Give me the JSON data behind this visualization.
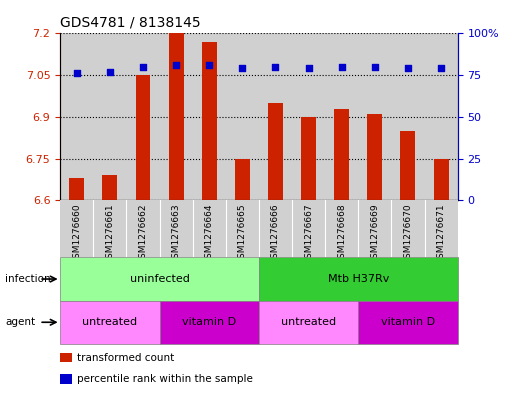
{
  "title": "GDS4781 / 8138145",
  "samples": [
    "GSM1276660",
    "GSM1276661",
    "GSM1276662",
    "GSM1276663",
    "GSM1276664",
    "GSM1276665",
    "GSM1276666",
    "GSM1276667",
    "GSM1276668",
    "GSM1276669",
    "GSM1276670",
    "GSM1276671"
  ],
  "bar_values": [
    6.68,
    6.69,
    7.05,
    7.2,
    7.17,
    6.75,
    6.95,
    6.9,
    6.93,
    6.91,
    6.85,
    6.75
  ],
  "dot_values": [
    76,
    77,
    80,
    81,
    81,
    79,
    80,
    79,
    80,
    80,
    79,
    79
  ],
  "bar_bottom": 6.6,
  "ylim_left": [
    6.6,
    7.2
  ],
  "ylim_right": [
    0,
    100
  ],
  "yticks_left": [
    6.6,
    6.75,
    6.9,
    7.05,
    7.2
  ],
  "yticks_right": [
    0,
    25,
    50,
    75,
    100
  ],
  "ytick_labels_left": [
    "6.6",
    "6.75",
    "6.9",
    "7.05",
    "7.2"
  ],
  "ytick_labels_right": [
    "0",
    "25",
    "50",
    "75",
    "100%"
  ],
  "bar_color": "#cc2200",
  "dot_color": "#0000cc",
  "infection_groups": [
    {
      "label": "uninfected",
      "start": 0,
      "end": 5,
      "color": "#99ff99"
    },
    {
      "label": "Mtb H37Rv",
      "start": 6,
      "end": 11,
      "color": "#33cc33"
    }
  ],
  "agent_groups": [
    {
      "label": "untreated",
      "start": 0,
      "end": 2,
      "color": "#ff88ff"
    },
    {
      "label": "vitamin D",
      "start": 3,
      "end": 5,
      "color": "#cc00cc"
    },
    {
      "label": "untreated",
      "start": 6,
      "end": 8,
      "color": "#ff88ff"
    },
    {
      "label": "vitamin D",
      "start": 9,
      "end": 11,
      "color": "#cc00cc"
    }
  ],
  "legend_items": [
    {
      "label": "transformed count",
      "color": "#cc2200"
    },
    {
      "label": "percentile rank within the sample",
      "color": "#0000cc"
    }
  ],
  "col_bg_color": "#d0d0d0",
  "grid_color": "#000000"
}
